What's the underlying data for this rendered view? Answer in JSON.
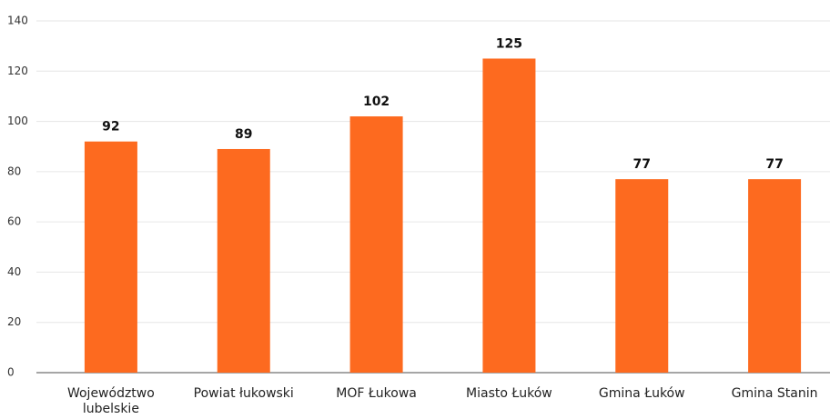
{
  "chart_data": {
    "type": "bar",
    "categories": [
      "Województwo lubelskie",
      "Powiat łukowski",
      "MOF Łukowa",
      "Miasto Łuków",
      "Gmina Łuków",
      "Gmina Stanin"
    ],
    "values": [
      92,
      89,
      102,
      125,
      77,
      77
    ],
    "color": "#fd6a1f",
    "ylim": [
      0,
      140
    ],
    "yticks": [
      0,
      20,
      40,
      60,
      80,
      100,
      120,
      140
    ],
    "grid": true
  }
}
